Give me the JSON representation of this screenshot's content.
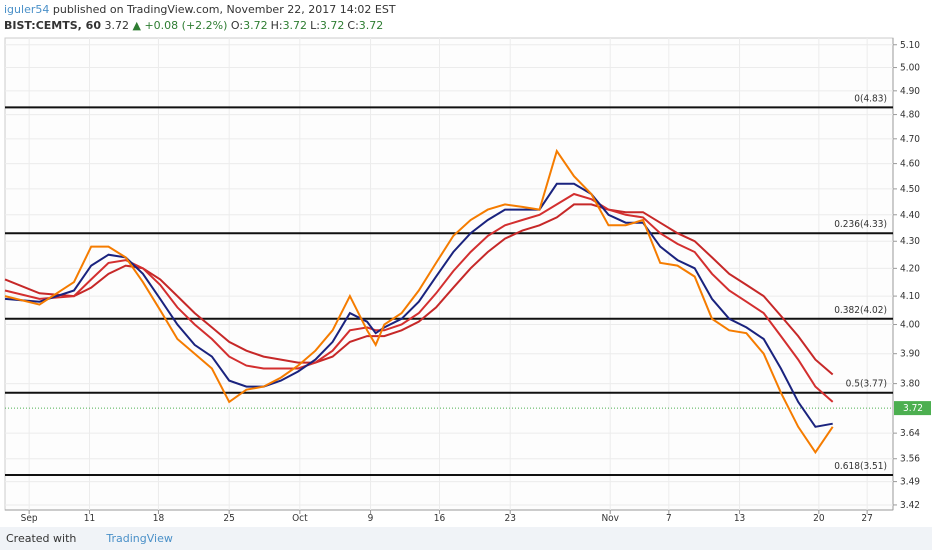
{
  "header": {
    "author": "iguler54",
    "published": "published on TradingView.com, November 22, 2017 14:02 EST",
    "symbol": "BIST:CEMTS, 60",
    "last": "3.72",
    "change": "▲ +0.08 (+2.2%)",
    "ohlc": [
      {
        "label": "O:",
        "value": "3.72"
      },
      {
        "label": "H:",
        "value": "3.72"
      },
      {
        "label": "L:",
        "value": "3.72"
      },
      {
        "label": "C:",
        "value": "3.72"
      }
    ]
  },
  "footer": {
    "created": "Created with",
    "brand": "TradingView"
  },
  "chart_data": {
    "type": "line",
    "log_scale": true,
    "grid": true,
    "ylim": [
      3.405,
      5.13
    ],
    "yticks": [
      {
        "value": 3.42,
        "label": "3.42"
      },
      {
        "value": 3.49,
        "label": "3.49"
      },
      {
        "value": 3.56,
        "label": "3.56"
      },
      {
        "value": 3.64,
        "label": "3.64"
      },
      {
        "value": 3.8,
        "label": "3.80"
      },
      {
        "value": 3.9,
        "label": "3.90"
      },
      {
        "value": 4.0,
        "label": "4.00"
      },
      {
        "value": 4.1,
        "label": "4.10"
      },
      {
        "value": 4.2,
        "label": "4.20"
      },
      {
        "value": 4.3,
        "label": "4.30"
      },
      {
        "value": 4.4,
        "label": "4.40"
      },
      {
        "value": 4.5,
        "label": "4.50"
      },
      {
        "value": 4.6,
        "label": "4.60"
      },
      {
        "value": 4.7,
        "label": "4.70"
      },
      {
        "value": 4.8,
        "label": "4.80"
      },
      {
        "value": 4.9,
        "label": "4.90"
      },
      {
        "value": 5.0,
        "label": "5.00"
      },
      {
        "value": 5.1,
        "label": "5.10"
      }
    ],
    "xlim": [
      0,
      515
    ],
    "xticks": [
      {
        "value": 14,
        "label": "Sep"
      },
      {
        "value": 49,
        "label": "11"
      },
      {
        "value": 89,
        "label": "18"
      },
      {
        "value": 130,
        "label": "25"
      },
      {
        "value": 171,
        "label": "Oct"
      },
      {
        "value": 212,
        "label": "9"
      },
      {
        "value": 252,
        "label": "16"
      },
      {
        "value": 293,
        "label": "23"
      },
      {
        "value": 351,
        "label": "Nov"
      },
      {
        "value": 385,
        "label": "7"
      },
      {
        "value": 426,
        "label": "13"
      },
      {
        "value": 472,
        "label": "20"
      },
      {
        "value": 500,
        "label": "27"
      }
    ],
    "x": [
      0,
      20,
      40,
      50,
      60,
      70,
      80,
      90,
      100,
      110,
      120,
      130,
      140,
      150,
      160,
      170,
      180,
      190,
      200,
      210,
      215,
      220,
      230,
      240,
      250,
      260,
      270,
      280,
      290,
      300,
      310,
      320,
      330,
      340,
      350,
      360,
      370,
      380,
      390,
      400,
      410,
      420,
      430,
      440,
      450,
      460,
      470,
      480
    ],
    "series": [
      {
        "color": "#c62828",
        "values": [
          4.16,
          4.11,
          4.1,
          4.13,
          4.18,
          4.21,
          4.2,
          4.16,
          4.1,
          4.04,
          3.99,
          3.94,
          3.91,
          3.89,
          3.88,
          3.87,
          3.87,
          3.89,
          3.94,
          3.96,
          3.96,
          3.96,
          3.98,
          4.01,
          4.06,
          4.13,
          4.2,
          4.26,
          4.31,
          4.34,
          4.36,
          4.39,
          4.44,
          4.44,
          4.42,
          4.41,
          4.41,
          4.37,
          4.33,
          4.3,
          4.24,
          4.18,
          4.14,
          4.1,
          4.03,
          3.96,
          3.88,
          3.83
        ]
      },
      {
        "color": "#d32f2f",
        "values": [
          4.12,
          4.09,
          4.1,
          4.16,
          4.22,
          4.23,
          4.2,
          4.14,
          4.06,
          4.0,
          3.95,
          3.89,
          3.86,
          3.85,
          3.85,
          3.85,
          3.87,
          3.91,
          3.98,
          3.99,
          3.98,
          3.98,
          4.0,
          4.04,
          4.11,
          4.19,
          4.26,
          4.32,
          4.36,
          4.38,
          4.4,
          4.44,
          4.48,
          4.46,
          4.42,
          4.4,
          4.39,
          4.33,
          4.29,
          4.26,
          4.18,
          4.12,
          4.08,
          4.04,
          3.96,
          3.88,
          3.79,
          3.74
        ]
      },
      {
        "color": "#1a237e",
        "values": [
          4.09,
          4.08,
          4.12,
          4.21,
          4.25,
          4.24,
          4.18,
          4.09,
          4.0,
          3.93,
          3.89,
          3.81,
          3.79,
          3.79,
          3.81,
          3.84,
          3.88,
          3.94,
          4.04,
          4.01,
          3.97,
          3.99,
          4.02,
          4.08,
          4.17,
          4.26,
          4.33,
          4.38,
          4.42,
          4.42,
          4.42,
          4.52,
          4.52,
          4.48,
          4.4,
          4.37,
          4.37,
          4.28,
          4.23,
          4.2,
          4.09,
          4.02,
          3.99,
          3.95,
          3.85,
          3.74,
          3.66,
          3.67
        ]
      },
      {
        "color": "#f57c00",
        "values": [
          4.1,
          4.07,
          4.15,
          4.28,
          4.28,
          4.24,
          4.15,
          4.05,
          3.95,
          3.9,
          3.85,
          3.74,
          3.78,
          3.79,
          3.82,
          3.86,
          3.91,
          3.98,
          4.1,
          3.98,
          3.93,
          4.0,
          4.04,
          4.12,
          4.22,
          4.32,
          4.38,
          4.42,
          4.44,
          4.43,
          4.42,
          4.65,
          4.55,
          4.48,
          4.36,
          4.36,
          4.38,
          4.22,
          4.21,
          4.17,
          4.02,
          3.98,
          3.97,
          3.9,
          3.77,
          3.66,
          3.58,
          3.66
        ]
      }
    ],
    "fib_levels": [
      {
        "value": 4.83,
        "label": "0(4.83)"
      },
      {
        "value": 4.33,
        "label": "0.236(4.33)"
      },
      {
        "value": 4.02,
        "label": "0.382(4.02)"
      },
      {
        "value": 3.77,
        "label": "0.5(3.77)"
      },
      {
        "value": 3.51,
        "label": "0.618(3.51)"
      }
    ],
    "last_price": {
      "value": 3.72,
      "label": "3.72",
      "color": "#4caf50"
    }
  }
}
